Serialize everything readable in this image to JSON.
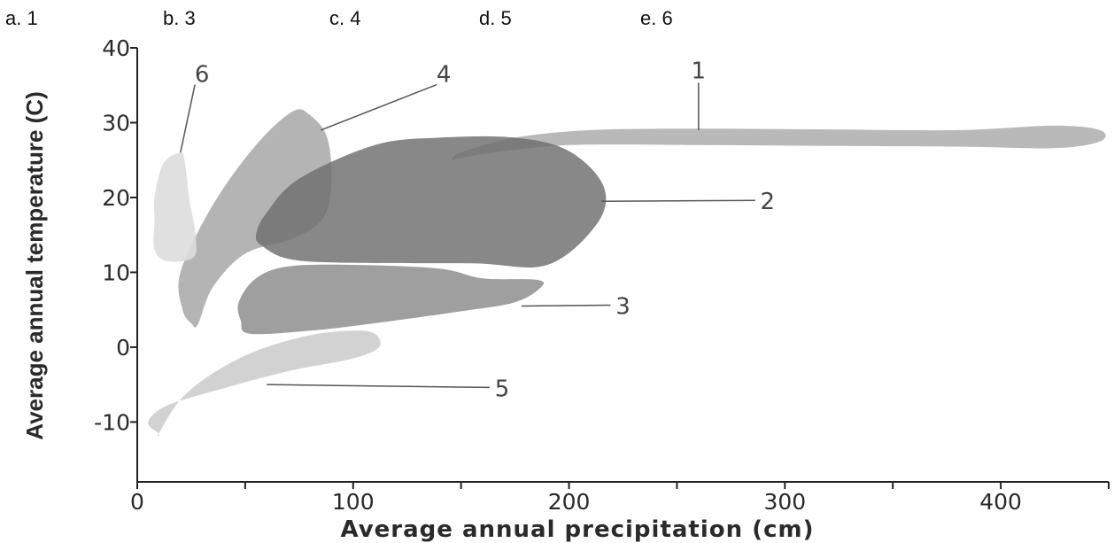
{
  "answer_choices": [
    {
      "letter": "a.",
      "value": "1"
    },
    {
      "letter": "b.",
      "value": "3"
    },
    {
      "letter": "c.",
      "value": "4"
    },
    {
      "letter": "d.",
      "value": "5"
    },
    {
      "letter": "e.",
      "value": "6"
    }
  ],
  "chart_data": {
    "type": "area",
    "xlabel": "Average annual precipitation (cm)",
    "ylabel": "Average annual temperature (C)",
    "xlim": [
      0,
      450
    ],
    "ylim": [
      -18,
      40
    ],
    "x_ticks": [
      0,
      100,
      200,
      300,
      400
    ],
    "y_ticks": [
      -10,
      0,
      10,
      20,
      30,
      40
    ],
    "grid": false,
    "legend": "none",
    "regions": [
      {
        "label": "1",
        "color": "#a9a9a9",
        "label_at": {
          "x": 260,
          "y": 37
        },
        "leader_to": {
          "x": 260,
          "y": 29
        }
      },
      {
        "label": "2",
        "color": "#6e6e6e",
        "label_at": {
          "x": 292,
          "y": 19.5
        },
        "leader_to": {
          "x": 215,
          "y": 19.5
        }
      },
      {
        "label": "3",
        "color": "#8a8a8a",
        "label_at": {
          "x": 225,
          "y": 5.5
        },
        "leader_to": {
          "x": 178,
          "y": 5.5
        }
      },
      {
        "label": "4",
        "color": "#a3a3a3",
        "label_at": {
          "x": 142,
          "y": 36.5
        },
        "leader_to": {
          "x": 85,
          "y": 29
        }
      },
      {
        "label": "5",
        "color": "#c8c8c8",
        "label_at": {
          "x": 169,
          "y": -5.5
        },
        "leader_to": {
          "x": 60,
          "y": -5
        }
      },
      {
        "label": "6",
        "color": "#dddddd",
        "label_at": {
          "x": 30,
          "y": 36.5
        },
        "leader_to": {
          "x": 20,
          "y": 26
        }
      }
    ]
  }
}
